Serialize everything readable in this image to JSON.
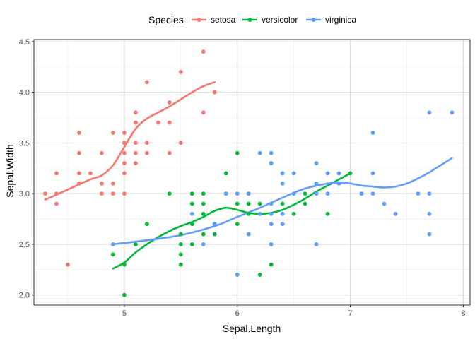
{
  "chart_data": {
    "type": "scatter",
    "xlabel": "Sepal.Length",
    "ylabel": "Sepal.Width",
    "xlim": [
      4.2,
      8.06
    ],
    "ylim": [
      1.9,
      4.52
    ],
    "x_ticks": [
      5,
      6,
      7,
      8
    ],
    "x_tick_labels": [
      "5",
      "6",
      "7",
      "8"
    ],
    "y_ticks": [
      2.0,
      2.5,
      3.0,
      3.5,
      4.0,
      4.5
    ],
    "y_tick_labels": [
      "2.0",
      "2.5",
      "3.0",
      "3.5",
      "4.0",
      "4.5"
    ],
    "grid": true,
    "legend": {
      "title": "Species",
      "position": "top"
    },
    "series": [
      {
        "name": "setosa",
        "color": "#F8766D",
        "points": [
          [
            4.3,
            3.0
          ],
          [
            4.4,
            2.9
          ],
          [
            4.4,
            3.0
          ],
          [
            4.4,
            3.2
          ],
          [
            4.5,
            2.3
          ],
          [
            4.6,
            3.1
          ],
          [
            4.6,
            3.2
          ],
          [
            4.6,
            3.4
          ],
          [
            4.6,
            3.6
          ],
          [
            4.7,
            3.2
          ],
          [
            4.8,
            3.0
          ],
          [
            4.8,
            3.1
          ],
          [
            4.8,
            3.4
          ],
          [
            4.9,
            3.0
          ],
          [
            4.9,
            3.1
          ],
          [
            4.9,
            3.6
          ],
          [
            5.0,
            3.0
          ],
          [
            5.0,
            3.2
          ],
          [
            5.0,
            3.3
          ],
          [
            5.0,
            3.4
          ],
          [
            5.0,
            3.5
          ],
          [
            5.0,
            3.6
          ],
          [
            5.1,
            3.3
          ],
          [
            5.1,
            3.4
          ],
          [
            5.1,
            3.5
          ],
          [
            5.1,
            3.7
          ],
          [
            5.1,
            3.8
          ],
          [
            5.2,
            3.4
          ],
          [
            5.2,
            3.5
          ],
          [
            5.2,
            4.1
          ],
          [
            5.3,
            3.7
          ],
          [
            5.4,
            3.4
          ],
          [
            5.4,
            3.7
          ],
          [
            5.4,
            3.9
          ],
          [
            5.5,
            3.5
          ],
          [
            5.5,
            4.2
          ],
          [
            5.7,
            3.8
          ],
          [
            5.7,
            4.4
          ],
          [
            5.8,
            4.0
          ]
        ],
        "smooth": [
          [
            4.3,
            2.94
          ],
          [
            4.5,
            3.04
          ],
          [
            4.7,
            3.14
          ],
          [
            4.8,
            3.18
          ],
          [
            4.9,
            3.28
          ],
          [
            5.0,
            3.46
          ],
          [
            5.1,
            3.64
          ],
          [
            5.2,
            3.74
          ],
          [
            5.3,
            3.8
          ],
          [
            5.4,
            3.86
          ],
          [
            5.5,
            3.93
          ],
          [
            5.6,
            4.0
          ],
          [
            5.7,
            4.06
          ],
          [
            5.8,
            4.1
          ]
        ]
      },
      {
        "name": "versicolor",
        "color": "#00BA38",
        "points": [
          [
            4.9,
            2.4
          ],
          [
            5.0,
            2.0
          ],
          [
            5.0,
            2.3
          ],
          [
            5.1,
            2.5
          ],
          [
            5.2,
            2.7
          ],
          [
            5.4,
            3.0
          ],
          [
            5.5,
            2.3
          ],
          [
            5.5,
            2.4
          ],
          [
            5.5,
            2.5
          ],
          [
            5.5,
            2.6
          ],
          [
            5.6,
            2.5
          ],
          [
            5.6,
            2.7
          ],
          [
            5.6,
            2.9
          ],
          [
            5.6,
            3.0
          ],
          [
            5.7,
            2.6
          ],
          [
            5.7,
            2.8
          ],
          [
            5.7,
            2.9
          ],
          [
            5.7,
            3.0
          ],
          [
            5.8,
            2.6
          ],
          [
            5.8,
            2.7
          ],
          [
            5.9,
            3.0
          ],
          [
            5.9,
            3.2
          ],
          [
            6.0,
            2.2
          ],
          [
            6.0,
            2.7
          ],
          [
            6.0,
            2.9
          ],
          [
            6.0,
            3.4
          ],
          [
            6.1,
            2.8
          ],
          [
            6.1,
            2.9
          ],
          [
            6.1,
            3.0
          ],
          [
            6.2,
            2.2
          ],
          [
            6.2,
            2.9
          ],
          [
            6.3,
            2.3
          ],
          [
            6.3,
            2.5
          ],
          [
            6.3,
            3.3
          ],
          [
            6.4,
            2.9
          ],
          [
            6.4,
            3.2
          ],
          [
            6.5,
            2.8
          ],
          [
            6.6,
            2.9
          ],
          [
            6.6,
            3.0
          ],
          [
            6.7,
            3.0
          ],
          [
            6.7,
            3.1
          ],
          [
            6.8,
            2.8
          ],
          [
            6.9,
            3.1
          ],
          [
            7.0,
            3.2
          ]
        ],
        "smooth": [
          [
            4.9,
            2.26
          ],
          [
            5.0,
            2.32
          ],
          [
            5.1,
            2.42
          ],
          [
            5.2,
            2.5
          ],
          [
            5.3,
            2.57
          ],
          [
            5.4,
            2.63
          ],
          [
            5.5,
            2.68
          ],
          [
            5.6,
            2.72
          ],
          [
            5.7,
            2.77
          ],
          [
            5.8,
            2.83
          ],
          [
            5.9,
            2.86
          ],
          [
            6.0,
            2.84
          ],
          [
            6.1,
            2.81
          ],
          [
            6.2,
            2.8
          ],
          [
            6.3,
            2.81
          ],
          [
            6.4,
            2.84
          ],
          [
            6.5,
            2.89
          ],
          [
            6.6,
            2.95
          ],
          [
            6.7,
            3.02
          ],
          [
            6.8,
            3.08
          ],
          [
            6.9,
            3.14
          ],
          [
            7.0,
            3.2
          ]
        ]
      },
      {
        "name": "virginica",
        "color": "#619CFF",
        "points": [
          [
            4.9,
            2.5
          ],
          [
            5.6,
            2.8
          ],
          [
            5.7,
            2.5
          ],
          [
            5.8,
            2.7
          ],
          [
            5.9,
            3.0
          ],
          [
            6.0,
            2.2
          ],
          [
            6.0,
            3.0
          ],
          [
            6.1,
            2.6
          ],
          [
            6.1,
            3.0
          ],
          [
            6.2,
            2.8
          ],
          [
            6.2,
            3.4
          ],
          [
            6.3,
            2.5
          ],
          [
            6.3,
            2.7
          ],
          [
            6.3,
            2.8
          ],
          [
            6.3,
            2.9
          ],
          [
            6.3,
            3.3
          ],
          [
            6.3,
            3.4
          ],
          [
            6.4,
            2.7
          ],
          [
            6.4,
            2.8
          ],
          [
            6.4,
            3.1
          ],
          [
            6.4,
            3.2
          ],
          [
            6.5,
            3.0
          ],
          [
            6.5,
            3.2
          ],
          [
            6.7,
            2.5
          ],
          [
            6.7,
            3.0
          ],
          [
            6.7,
            3.1
          ],
          [
            6.7,
            3.3
          ],
          [
            6.8,
            3.0
          ],
          [
            6.8,
            3.2
          ],
          [
            6.9,
            3.1
          ],
          [
            6.9,
            3.2
          ],
          [
            7.1,
            3.0
          ],
          [
            7.2,
            3.0
          ],
          [
            7.2,
            3.2
          ],
          [
            7.2,
            3.6
          ],
          [
            7.3,
            2.9
          ],
          [
            7.4,
            2.8
          ],
          [
            7.6,
            3.0
          ],
          [
            7.7,
            2.6
          ],
          [
            7.7,
            2.8
          ],
          [
            7.7,
            3.0
          ],
          [
            7.7,
            3.8
          ],
          [
            7.9,
            3.8
          ]
        ],
        "smooth": [
          [
            4.9,
            2.5
          ],
          [
            5.2,
            2.54
          ],
          [
            5.5,
            2.59
          ],
          [
            5.8,
            2.68
          ],
          [
            6.0,
            2.77
          ],
          [
            6.2,
            2.86
          ],
          [
            6.4,
            2.96
          ],
          [
            6.6,
            3.05
          ],
          [
            6.8,
            3.1
          ],
          [
            6.9,
            3.11
          ],
          [
            7.0,
            3.1
          ],
          [
            7.1,
            3.08
          ],
          [
            7.2,
            3.07
          ],
          [
            7.3,
            3.06
          ],
          [
            7.4,
            3.07
          ],
          [
            7.5,
            3.1
          ],
          [
            7.6,
            3.15
          ],
          [
            7.7,
            3.21
          ],
          [
            7.8,
            3.28
          ],
          [
            7.9,
            3.35
          ]
        ]
      }
    ]
  }
}
